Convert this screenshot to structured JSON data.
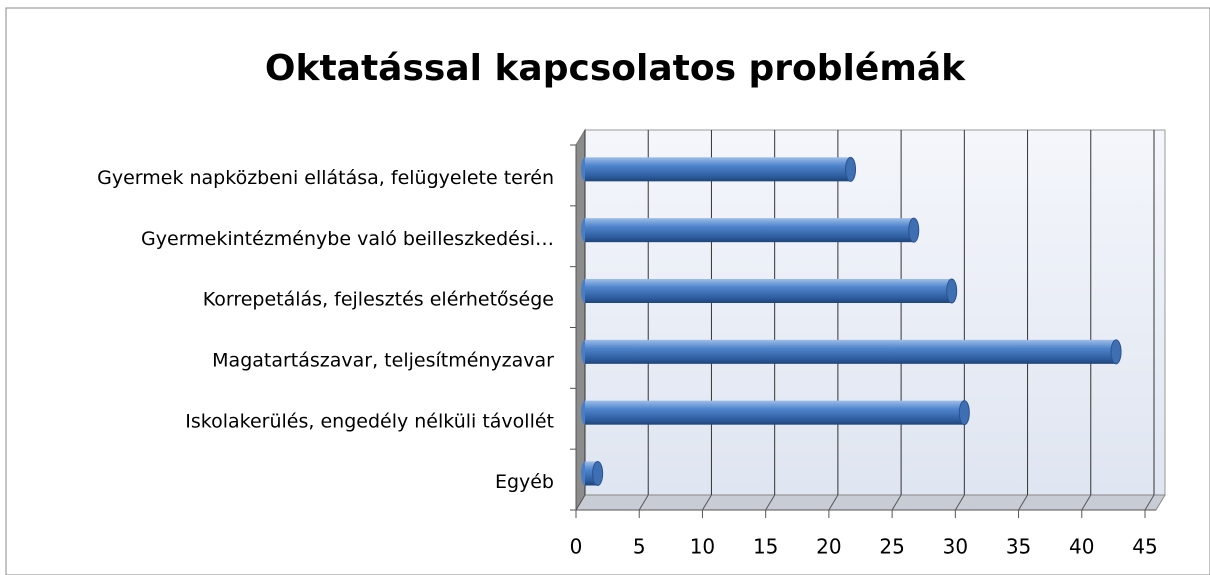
{
  "chart_data": {
    "type": "bar",
    "orientation": "horizontal",
    "title": "Oktatással kapcsolatos problémák",
    "categories": [
      "Gyermek napközbeni ellátása, felügyelete terén",
      "Gyermekintézménybe való beilleszkedési…",
      "Korrepetálás, fejlesztés elérhetősége",
      "Magatartászavar, teljesítményzavar",
      "Iskolakerülés, engedély nélküli távollét",
      "Egyéb"
    ],
    "values": [
      21,
      26,
      29,
      42,
      30,
      1
    ],
    "color": "#4a7ec4",
    "xlim": [
      0,
      45
    ],
    "xticks": [
      0,
      5,
      10,
      15,
      20,
      25,
      30,
      35,
      40,
      45
    ],
    "grid": true
  }
}
